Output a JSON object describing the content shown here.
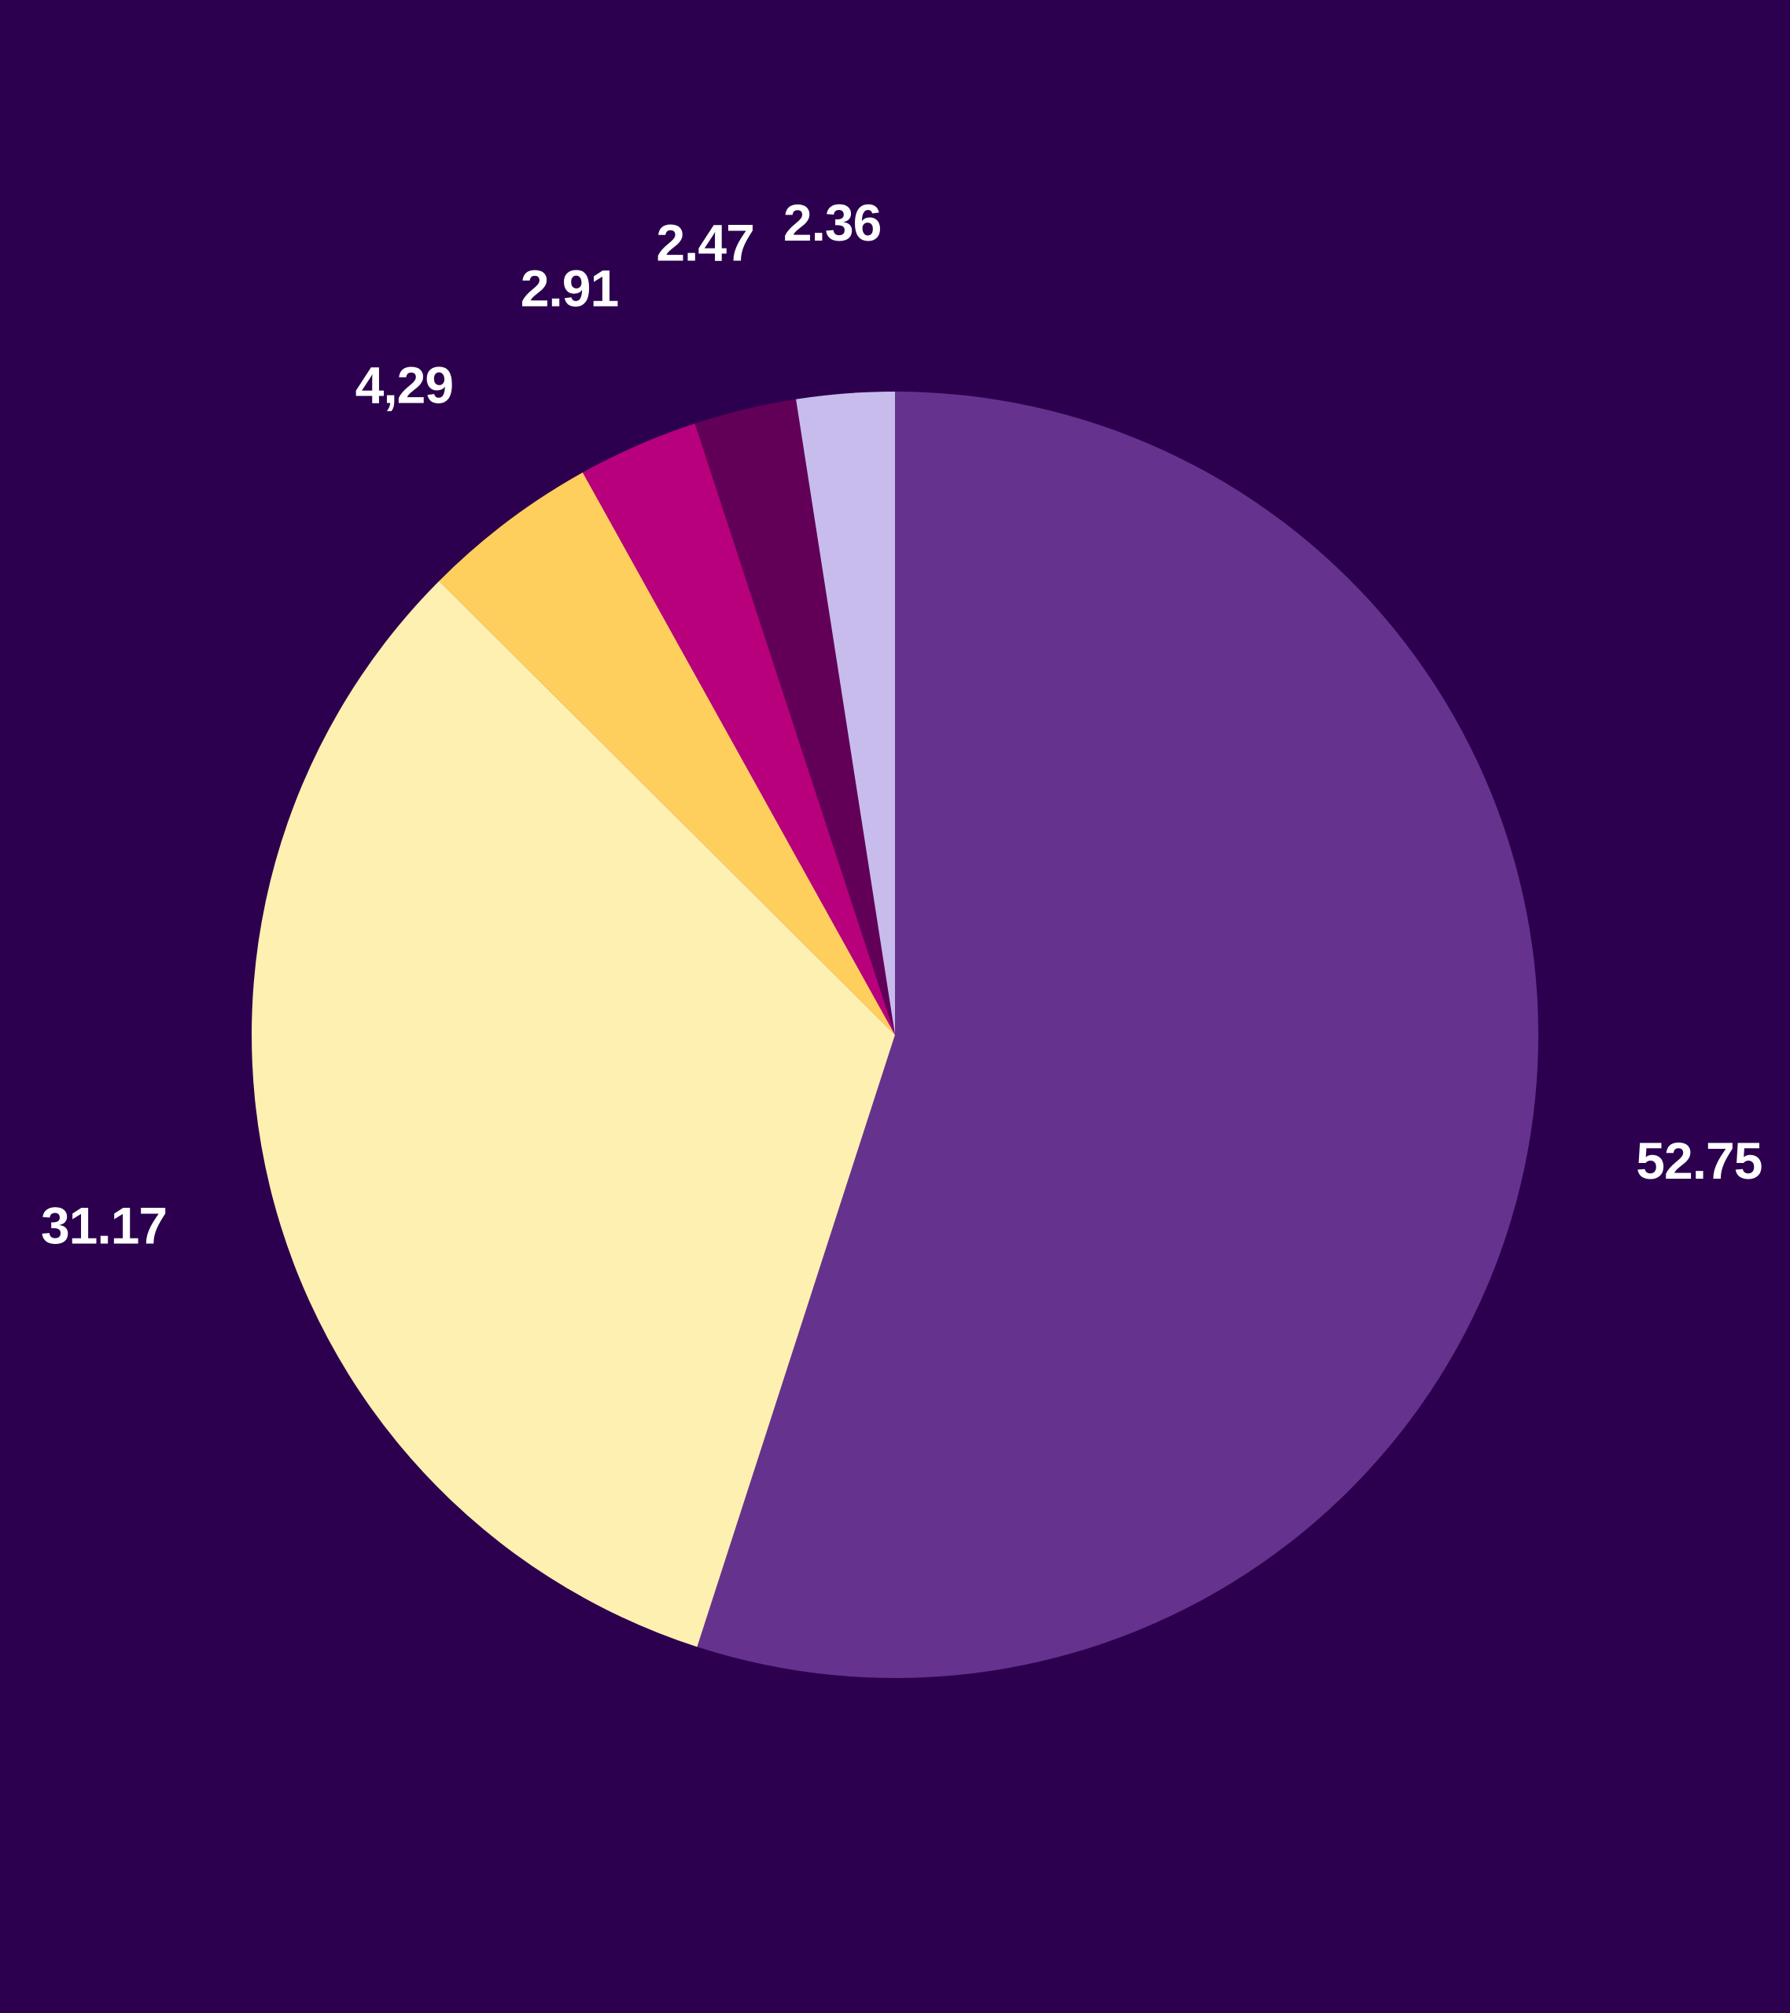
{
  "background_color": "#2d004f",
  "chart_data": {
    "type": "pie",
    "title": "",
    "start": "12 o'clock",
    "direction": "clockwise",
    "legend": "none",
    "slices": [
      {
        "value": 52.75,
        "label": "52.75",
        "color": "#65338e"
      },
      {
        "value": 31.17,
        "label": "31.17",
        "color": "#fef0b1"
      },
      {
        "value": 4.29,
        "label": "4,29",
        "color": "#fecf5d"
      },
      {
        "value": 2.91,
        "label": "2.91",
        "color": "#b8007c"
      },
      {
        "value": 2.47,
        "label": "2.47",
        "color": "#620057"
      },
      {
        "value": 2.36,
        "label": "2.36",
        "color": "#c8bcec"
      }
    ]
  }
}
